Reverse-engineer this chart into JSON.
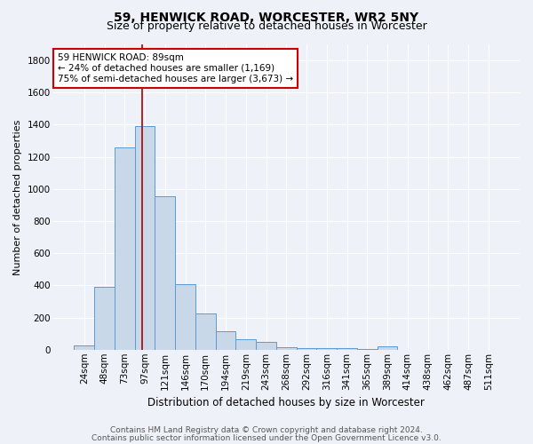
{
  "title1": "59, HENWICK ROAD, WORCESTER, WR2 5NY",
  "title2": "Size of property relative to detached houses in Worcester",
  "xlabel": "Distribution of detached houses by size in Worcester",
  "ylabel": "Number of detached properties",
  "footnote1": "Contains HM Land Registry data © Crown copyright and database right 2024.",
  "footnote2": "Contains public sector information licensed under the Open Government Licence v3.0.",
  "categories": [
    "24sqm",
    "48sqm",
    "73sqm",
    "97sqm",
    "121sqm",
    "146sqm",
    "170sqm",
    "194sqm",
    "219sqm",
    "243sqm",
    "268sqm",
    "292sqm",
    "316sqm",
    "341sqm",
    "365sqm",
    "389sqm",
    "414sqm",
    "438sqm",
    "462sqm",
    "487sqm",
    "511sqm"
  ],
  "values": [
    25,
    390,
    1260,
    1390,
    955,
    410,
    228,
    115,
    65,
    48,
    18,
    10,
    8,
    10,
    5,
    20,
    0,
    0,
    0,
    0,
    0
  ],
  "bar_color": "#c8d8e8",
  "bar_edge_color": "#5b9bd5",
  "vline_x": 2.85,
  "vline_color": "#aa0000",
  "annotation_line1": "59 HENWICK ROAD: 89sqm",
  "annotation_line2": "← 24% of detached houses are smaller (1,169)",
  "annotation_line3": "75% of semi-detached houses are larger (3,673) →",
  "annotation_box_color": "#ffffff",
  "annotation_box_edge": "#cc0000",
  "ylim": [
    0,
    1900
  ],
  "yticks": [
    0,
    200,
    400,
    600,
    800,
    1000,
    1200,
    1400,
    1600,
    1800
  ],
  "bg_color": "#eef2f8",
  "grid_color": "#ffffff",
  "title1_fontsize": 10,
  "title2_fontsize": 9,
  "xlabel_fontsize": 8.5,
  "ylabel_fontsize": 8,
  "tick_fontsize": 7.5,
  "footnote_fontsize": 6.5,
  "annotation_fontsize": 7.5
}
